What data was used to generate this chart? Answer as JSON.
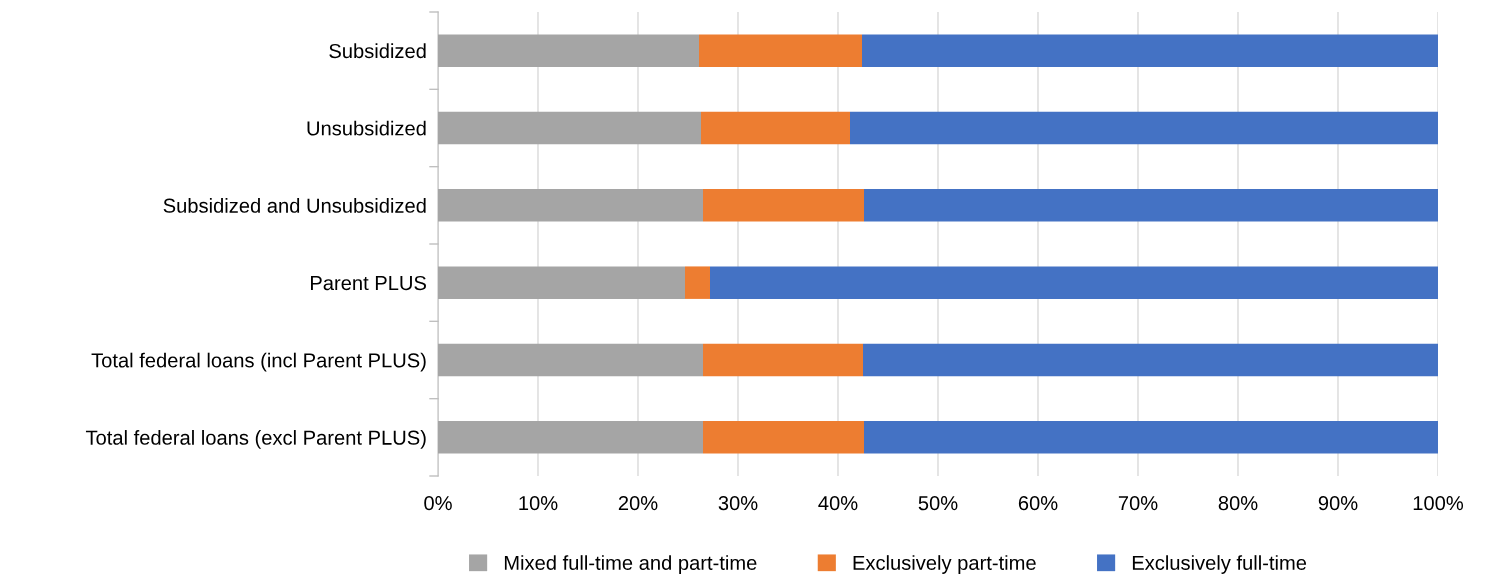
{
  "chart_data": {
    "type": "bar",
    "orientation": "horizontal",
    "stacked": true,
    "categories": [
      "Subsidized",
      "Unsubsidized",
      "Subsidized and Unsubsidized",
      "Parent PLUS",
      "Total federal loans (incl Parent PLUS)",
      "Total federal loans (excl Parent PLUS)"
    ],
    "series": [
      {
        "name": "Mixed full-time and part-time",
        "color": "#a5a5a5",
        "values": [
          26.1,
          26.3,
          26.5,
          24.7,
          26.5,
          26.5
        ]
      },
      {
        "name": "Exclusively part-time",
        "color": "#ed7d31",
        "values": [
          16.3,
          14.9,
          16.1,
          2.5,
          16.0,
          16.1
        ]
      },
      {
        "name": "Exclusively full-time",
        "color": "#4472c4",
        "values": [
          57.6,
          58.8,
          57.4,
          72.8,
          57.5,
          57.4
        ]
      }
    ],
    "xlim": [
      0,
      100
    ],
    "xticks": [
      {
        "value": 0,
        "label": "0%"
      },
      {
        "value": 10,
        "label": "10%"
      },
      {
        "value": 20,
        "label": "20%"
      },
      {
        "value": 30,
        "label": "30%"
      },
      {
        "value": 40,
        "label": "40%"
      },
      {
        "value": 50,
        "label": "50%"
      },
      {
        "value": 60,
        "label": "60%"
      },
      {
        "value": 70,
        "label": "70%"
      },
      {
        "value": 80,
        "label": "80%"
      },
      {
        "value": 90,
        "label": "90%"
      },
      {
        "value": 100,
        "label": "100%"
      }
    ],
    "grid": "x",
    "legend": "bottom"
  }
}
